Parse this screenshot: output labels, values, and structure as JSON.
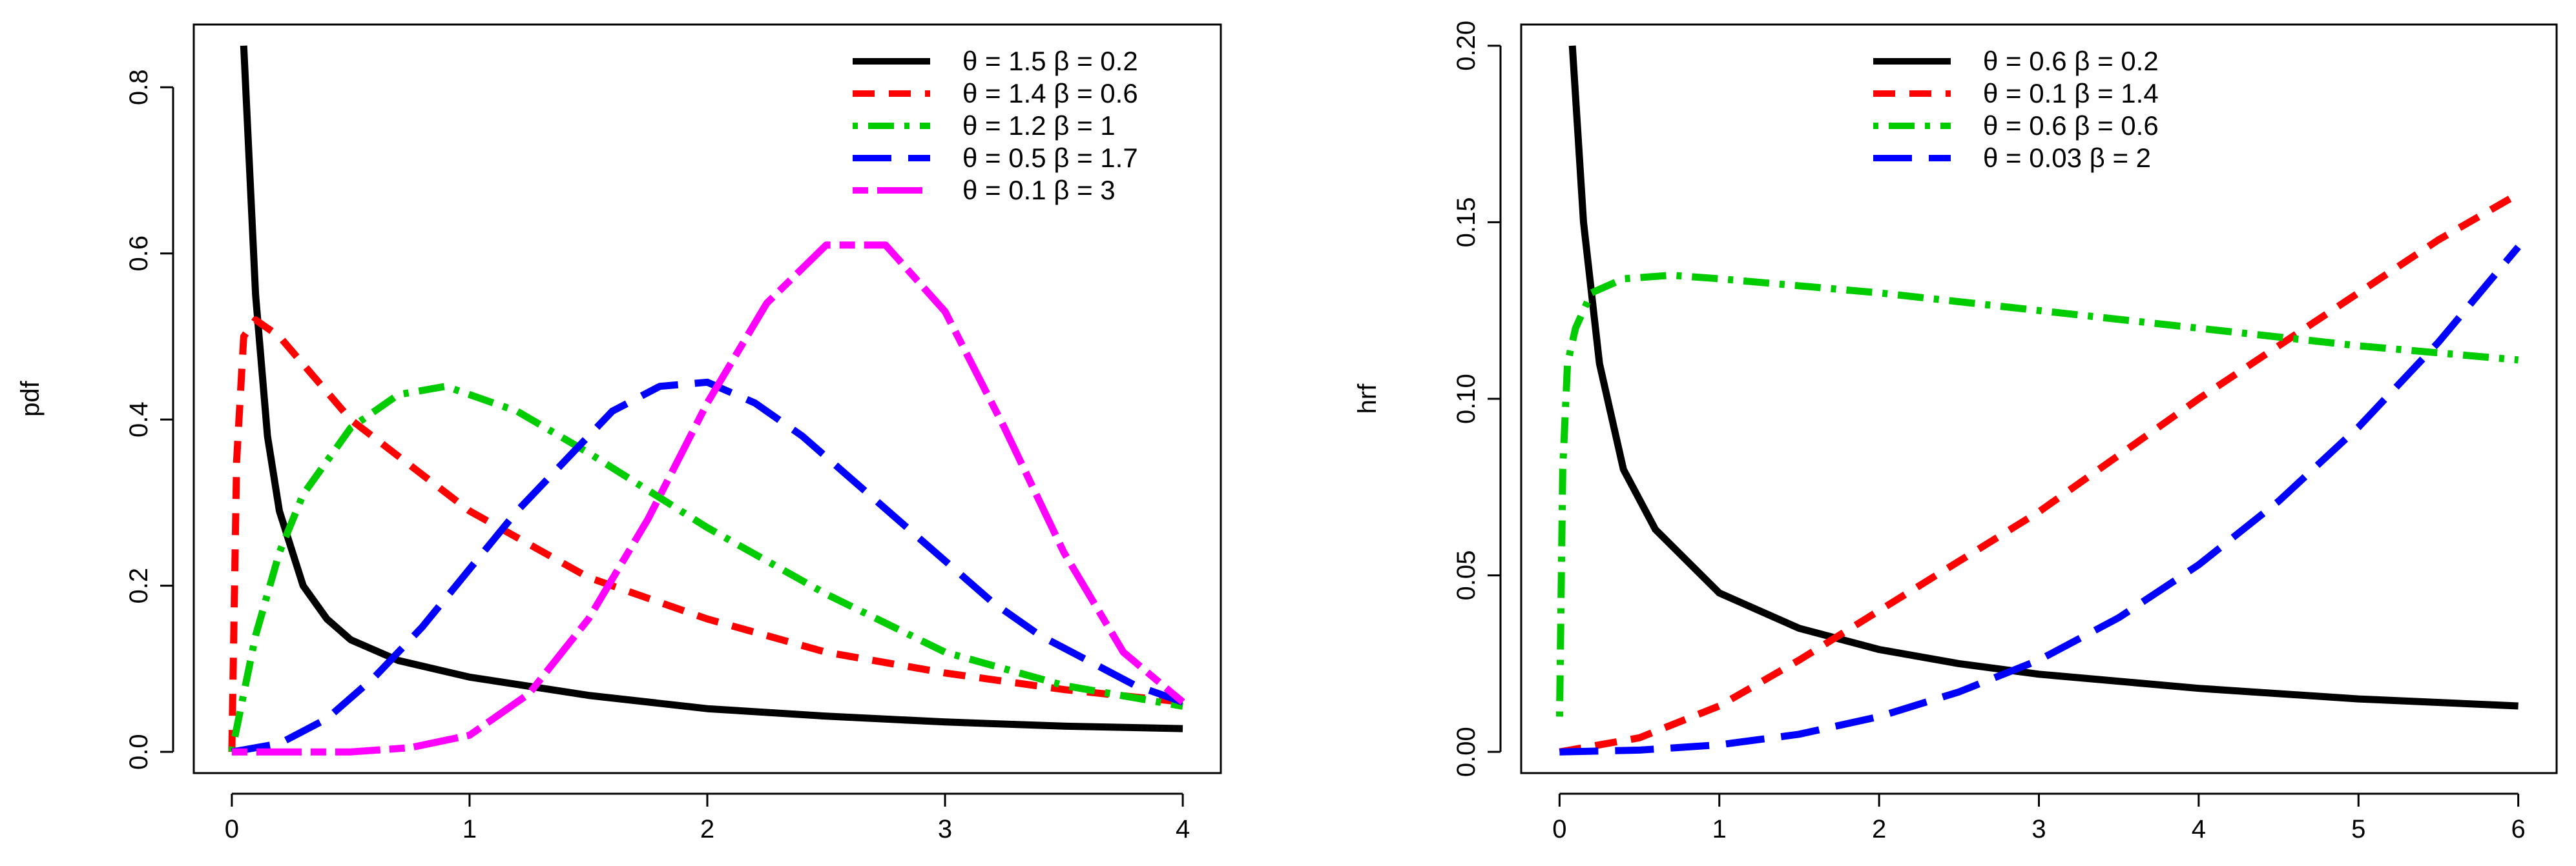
{
  "chart_data": [
    {
      "type": "line",
      "ylabel": "pdf",
      "xlim": [
        0,
        4
      ],
      "ylim": [
        0,
        0.85
      ],
      "x_ticks": [
        0,
        1,
        2,
        3,
        4
      ],
      "x_tick_labels": [
        "0",
        "1",
        "2",
        "3",
        "4"
      ],
      "y_ticks": [
        0,
        0.2,
        0.4,
        0.6,
        0.8
      ],
      "y_tick_labels": [
        "0.0",
        "0.2",
        "0.4",
        "0.6",
        "0.8"
      ],
      "legend_position": "top-right",
      "series": [
        {
          "name": "θ = 1.5  β = 0.2",
          "color": "#000000",
          "dash": "solid",
          "x": [
            0.05,
            0.1,
            0.15,
            0.2,
            0.3,
            0.4,
            0.5,
            0.7,
            1.0,
            1.5,
            2.0,
            2.5,
            3.0,
            3.5,
            4.0
          ],
          "y": [
            0.85,
            0.55,
            0.38,
            0.29,
            0.2,
            0.16,
            0.135,
            0.11,
            0.09,
            0.068,
            0.052,
            0.043,
            0.036,
            0.031,
            0.028
          ]
        },
        {
          "name": "θ = 1.4  β = 0.6",
          "color": "#ff0000",
          "dash": "dashed",
          "x": [
            0.0,
            0.02,
            0.05,
            0.1,
            0.2,
            0.5,
            1.0,
            1.5,
            2.0,
            2.5,
            3.0,
            3.5,
            4.0
          ],
          "y": [
            0.0,
            0.35,
            0.5,
            0.52,
            0.5,
            0.4,
            0.29,
            0.21,
            0.16,
            0.12,
            0.095,
            0.075,
            0.06
          ]
        },
        {
          "name": "θ = 1.2  β = 1",
          "color": "#00cc00",
          "dash": "dotdash",
          "x": [
            0.0,
            0.1,
            0.2,
            0.3,
            0.5,
            0.7,
            0.9,
            1.2,
            1.5,
            2.0,
            2.5,
            3.0,
            3.5,
            4.0
          ],
          "y": [
            0.0,
            0.14,
            0.24,
            0.31,
            0.39,
            0.43,
            0.44,
            0.41,
            0.36,
            0.27,
            0.19,
            0.12,
            0.08,
            0.055
          ]
        },
        {
          "name": "θ = 0.5  β = 1.7",
          "color": "#0000ff",
          "dash": "longdash",
          "x": [
            0.0,
            0.2,
            0.4,
            0.6,
            0.8,
            1.0,
            1.2,
            1.4,
            1.6,
            1.8,
            2.0,
            2.2,
            2.4,
            2.6,
            2.8,
            3.0,
            3.2,
            3.4,
            3.6,
            3.8,
            4.0
          ],
          "y": [
            0.0,
            0.01,
            0.04,
            0.09,
            0.15,
            0.22,
            0.29,
            0.35,
            0.41,
            0.44,
            0.445,
            0.42,
            0.38,
            0.33,
            0.28,
            0.23,
            0.18,
            0.14,
            0.11,
            0.08,
            0.06
          ]
        },
        {
          "name": "θ = 0.1  β = 3",
          "color": "#ff00ff",
          "dash": "twodash",
          "x": [
            0.0,
            0.5,
            0.75,
            1.0,
            1.25,
            1.5,
            1.75,
            2.0,
            2.25,
            2.5,
            2.75,
            3.0,
            3.25,
            3.5,
            3.75,
            4.0
          ],
          "y": [
            0.0,
            0.0,
            0.005,
            0.02,
            0.07,
            0.16,
            0.28,
            0.42,
            0.54,
            0.61,
            0.61,
            0.53,
            0.39,
            0.24,
            0.12,
            0.06
          ]
        }
      ]
    },
    {
      "type": "line",
      "ylabel": "hrf",
      "xlim": [
        0,
        6
      ],
      "ylim": [
        0,
        0.2
      ],
      "x_ticks": [
        0,
        1,
        2,
        3,
        4,
        5,
        6
      ],
      "x_tick_labels": [
        "0",
        "1",
        "2",
        "3",
        "4",
        "5",
        "6"
      ],
      "y_ticks": [
        0,
        0.05,
        0.1,
        0.15,
        0.2
      ],
      "y_tick_labels": [
        "0.00",
        "0.05",
        "0.10",
        "0.15",
        "0.20"
      ],
      "legend_position": "top-center",
      "series": [
        {
          "name": "θ = 0.6  β = 0.2",
          "color": "#000000",
          "dash": "solid",
          "x": [
            0.08,
            0.15,
            0.25,
            0.4,
            0.6,
            1.0,
            1.5,
            2.0,
            2.5,
            3.0,
            4.0,
            5.0,
            6.0
          ],
          "y": [
            0.2,
            0.15,
            0.11,
            0.08,
            0.063,
            0.045,
            0.035,
            0.029,
            0.025,
            0.022,
            0.018,
            0.015,
            0.013
          ]
        },
        {
          "name": "θ = 0.1  β = 1.4",
          "color": "#ff0000",
          "dash": "dashed",
          "x": [
            0.0,
            0.5,
            1.0,
            1.5,
            2.0,
            2.5,
            3.0,
            3.5,
            4.0,
            4.5,
            5.0,
            5.5,
            6.0
          ],
          "y": [
            0.0,
            0.004,
            0.013,
            0.026,
            0.04,
            0.054,
            0.068,
            0.084,
            0.1,
            0.115,
            0.13,
            0.145,
            0.158
          ]
        },
        {
          "name": "θ = 0.6  β = 0.6",
          "color": "#00cc00",
          "dash": "dotdash",
          "x": [
            0.0,
            0.02,
            0.05,
            0.1,
            0.2,
            0.4,
            0.7,
            1.0,
            2.0,
            3.0,
            4.0,
            5.0,
            6.0
          ],
          "y": [
            0.01,
            0.08,
            0.11,
            0.12,
            0.13,
            0.134,
            0.135,
            0.134,
            0.13,
            0.125,
            0.12,
            0.115,
            0.111
          ]
        },
        {
          "name": "θ = 0.03  β = 2",
          "color": "#0000ff",
          "dash": "longdash",
          "x": [
            0.0,
            0.5,
            1.0,
            1.5,
            2.0,
            2.5,
            3.0,
            3.5,
            4.0,
            4.5,
            5.0,
            5.5,
            6.0
          ],
          "y": [
            0.0,
            0.0005,
            0.002,
            0.005,
            0.01,
            0.017,
            0.026,
            0.038,
            0.053,
            0.071,
            0.092,
            0.116,
            0.143
          ]
        }
      ]
    }
  ]
}
